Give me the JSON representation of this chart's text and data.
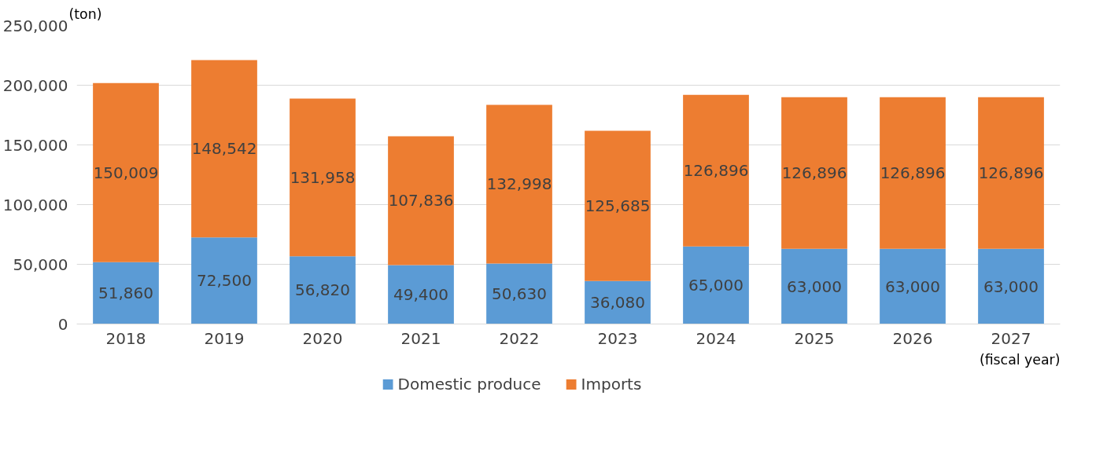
{
  "chart_data": {
    "type": "bar",
    "stacked": true,
    "ylabel": "(ton)",
    "xlabel": "(fiscal year)",
    "categories": [
      "2018",
      "2019",
      "2020",
      "2021",
      "2022",
      "2023",
      "2024",
      "2025",
      "2026",
      "2027"
    ],
    "series": [
      {
        "name": "Domestic produce",
        "color": "#5b9bd5",
        "values": [
          51860,
          72500,
          56820,
          49400,
          50630,
          36080,
          65000,
          63000,
          63000,
          63000
        ],
        "value_labels": [
          "51,860",
          "72,500",
          "56,820",
          "49,400",
          "50,630",
          "36,080",
          "65,000",
          "63,000",
          "63,000",
          "63,000"
        ]
      },
      {
        "name": "Imports",
        "color": "#ed7d31",
        "values": [
          150009,
          148542,
          131958,
          107836,
          132998,
          125685,
          126896,
          126896,
          126896,
          126896
        ],
        "value_labels": [
          "150,009",
          "148,542",
          "131,958",
          "107,836",
          "132,998",
          "125,685",
          "126,896",
          "126,896",
          "126,896",
          "126,896"
        ]
      }
    ],
    "ylim": [
      0,
      250000
    ],
    "yticks": [
      {
        "value": 0,
        "label": "0"
      },
      {
        "value": 50000,
        "label": "50,000"
      },
      {
        "value": 100000,
        "label": "100,000"
      },
      {
        "value": 150000,
        "label": "150,000"
      },
      {
        "value": 200000,
        "label": "200,000"
      },
      {
        "value": 250000,
        "label": "250,000"
      }
    ],
    "grid": "y",
    "legend": "bottom"
  }
}
